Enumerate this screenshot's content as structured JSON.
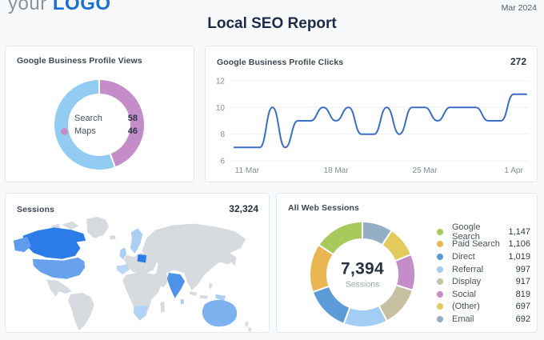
{
  "header": {
    "logo_prefix": "your",
    "logo_name": "LOGO",
    "period": "Mar 2024",
    "title": "Local SEO Report"
  },
  "cards": {
    "profile_views": {
      "title": "Google Business Profile Views"
    },
    "profile_clicks": {
      "title": "Google Business Profile Clicks",
      "total": "272"
    },
    "sessions_map": {
      "title": "Sessions",
      "total": "32,324"
    },
    "web_sessions": {
      "title": "All Web Sessions",
      "center_value": "7,394",
      "center_label": "Sessions"
    }
  },
  "chart_data": [
    {
      "id": "profile_views",
      "type": "pie",
      "title": "Google Business Profile Views",
      "legend_position": "center",
      "items": [
        {
          "label": "Search",
          "value": 58,
          "display": "58",
          "color": "#93ccf3"
        },
        {
          "label": "Maps",
          "value": 46,
          "display": "46",
          "color": "#c48cc9"
        }
      ]
    },
    {
      "id": "profile_clicks",
      "type": "line",
      "title": "Google Business Profile Clicks",
      "total": 272,
      "line_color": "#3b6ec7",
      "grid": true,
      "y_ticks": [
        6,
        8,
        10,
        12
      ],
      "ylim": [
        6,
        12
      ],
      "x_tick_labels": [
        "11 Mar",
        "18 Mar",
        "25 Mar",
        "1 Apr"
      ],
      "x_tick_indices": [
        1,
        8,
        15,
        22
      ],
      "values": [
        7,
        7,
        7,
        10,
        7,
        9,
        9,
        10,
        9,
        10,
        8,
        8,
        10,
        8,
        10,
        10,
        9,
        10,
        10,
        10,
        9,
        9,
        11,
        11
      ]
    },
    {
      "id": "sessions_map",
      "type": "heatmap",
      "title": "Sessions",
      "total": 32324,
      "note": "world geochart, blue intensity = sessions",
      "highlighted_regions": [
        "Canada",
        "United States",
        "Alaska",
        "United Kingdom",
        "Scandinavia",
        "Spain",
        "Poland",
        "India",
        "Sri Lanka",
        "South Africa",
        "New Guinea",
        "Australia"
      ]
    },
    {
      "id": "web_sessions",
      "type": "pie",
      "title": "All Web Sessions",
      "center_value": "7,394",
      "center_label": "Sessions",
      "legend_position": "right",
      "items": [
        {
          "label": "Google Search",
          "value": 1147,
          "display": "1,147",
          "color": "#a8c95c"
        },
        {
          "label": "Paid Search",
          "value": 1106,
          "display": "1,106",
          "color": "#eab651"
        },
        {
          "label": "Direct",
          "value": 1019,
          "display": "1,019",
          "color": "#5b9bd8"
        },
        {
          "label": "Referral",
          "value": 997,
          "display": "997",
          "color": "#a3cdf4"
        },
        {
          "label": "Display",
          "value": 917,
          "display": "917",
          "color": "#c7c1a2"
        },
        {
          "label": "Social",
          "value": 819,
          "display": "819",
          "color": "#c48cc9"
        },
        {
          "label": "(Other)",
          "value": 697,
          "display": "697",
          "color": "#e2cb5c"
        },
        {
          "label": "Email",
          "value": 692,
          "display": "692",
          "color": "#93aec5"
        }
      ]
    }
  ],
  "map": {
    "base_color": "#d7dbe0",
    "regions": [
      {
        "id": "canada",
        "color": "#2b7ce9"
      },
      {
        "id": "alaska",
        "color": "#5f9ced"
      },
      {
        "id": "usa",
        "color": "#67a1ee"
      },
      {
        "id": "uk",
        "color": "#abcef5"
      },
      {
        "id": "scandinavia",
        "color": "#abcef5"
      },
      {
        "id": "spain",
        "color": "#bad6f7"
      },
      {
        "id": "poland",
        "color": "#2b7ce9"
      },
      {
        "id": "india",
        "color": "#4e91ea"
      },
      {
        "id": "sri-lanka",
        "color": "#abcef5"
      },
      {
        "id": "south-africa",
        "color": "#b3d2f6"
      },
      {
        "id": "new-guinea",
        "color": "#abcef5"
      },
      {
        "id": "australia",
        "color": "#7db2f1"
      }
    ]
  },
  "colors": {
    "accent_blue": "#1a6fd4",
    "title_navy": "#1b2c4a",
    "grid": "#eceff2",
    "axis_label": "#868e98"
  }
}
